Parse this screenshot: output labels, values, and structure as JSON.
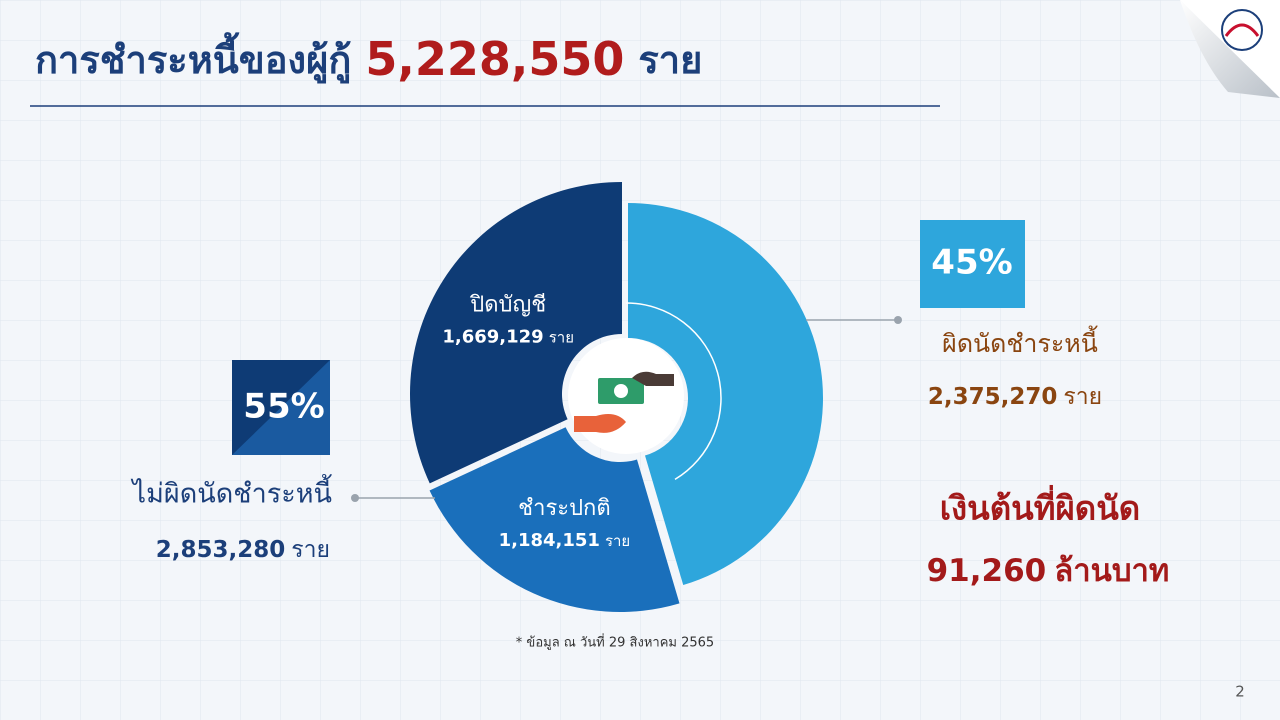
{
  "header": {
    "title": "การชำระหนี้ของผู้กู้",
    "total": "5,228,550",
    "unit": "ราย"
  },
  "chart_data": {
    "type": "pie",
    "donut": true,
    "categories": [
      "ผิดนัดชำระหนี้",
      "ชำระปกติ",
      "ปิดบัญชี"
    ],
    "values": [
      2375270,
      1184151,
      1669129
    ],
    "value_labels": [
      "2,375,270",
      "1,184,151",
      "1,669,129"
    ],
    "colors": [
      "#2ea6dc",
      "#1a6fbb",
      "#0e3b75"
    ]
  },
  "callouts": {
    "default": {
      "percent": "45%"
    },
    "non_default": {
      "percent": "55%",
      "label": "ไม่ผิดนัดชำระหนี้",
      "count": "2,853,280"
    }
  },
  "defaulted_principal": {
    "label": "เงินต้นที่ผิดนัด",
    "amount": "91,260",
    "unit": "ล้านบาท"
  },
  "footnote": "* ข้อมูล ณ วันที่ 29 สิงหาคม 2565",
  "page_number": "2"
}
